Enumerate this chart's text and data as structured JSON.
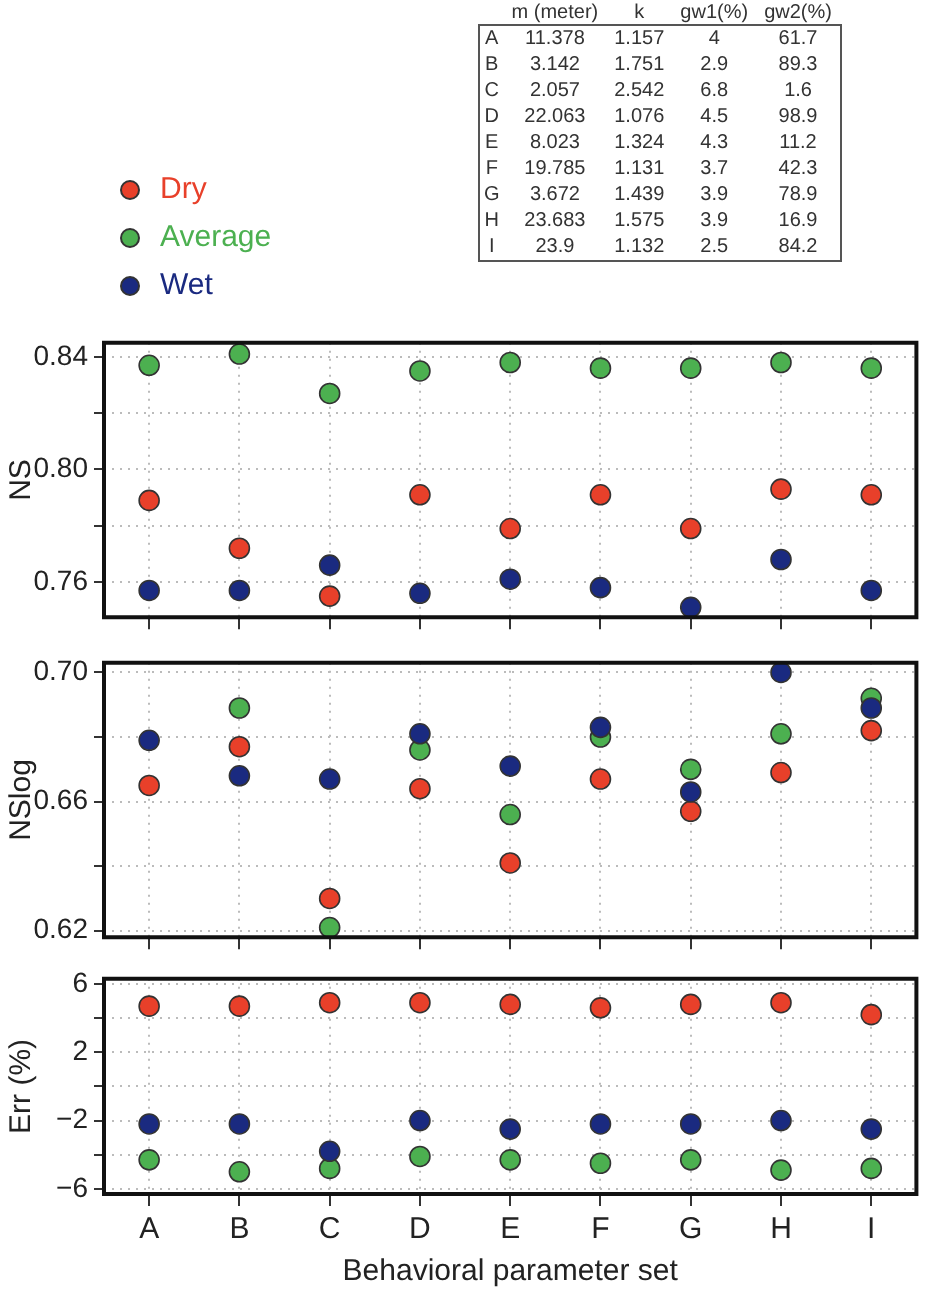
{
  "chart_data": [
    {
      "type": "other",
      "categories": [
        "m (meter)",
        "k",
        "gw1(%)",
        "gw2(%)"
      ],
      "y_categories": [
        "A",
        "B",
        "C",
        "D",
        "E",
        "F",
        "G",
        "H",
        "I"
      ],
      "cell_labels": [
        [
          "11.378",
          "1.157",
          "4",
          "61.7"
        ],
        [
          "3.142",
          "1.751",
          "2.9",
          "89.3"
        ],
        [
          "2.057",
          "2.542",
          "6.8",
          "1.6"
        ],
        [
          "22.063",
          "1.076",
          "4.5",
          "98.9"
        ],
        [
          "8.023",
          "1.324",
          "4.3",
          "11.2"
        ],
        [
          "19.785",
          "1.131",
          "3.7",
          "42.3"
        ],
        [
          "3.672",
          "1.439",
          "3.9",
          "78.9"
        ],
        [
          "23.683",
          "1.575",
          "3.9",
          "16.9"
        ],
        [
          "23.9",
          "1.132",
          "2.5",
          "84.2"
        ]
      ]
    },
    {
      "type": "scatter",
      "ylabel": "NS",
      "categories": [
        null,
        null,
        null,
        null,
        null,
        null,
        null,
        null,
        null
      ],
      "series": [
        {
          "name": "Dry",
          "color": "#e8402a",
          "values": [
            0.789,
            0.772,
            0.755,
            0.791,
            0.779,
            0.791,
            0.779,
            0.793,
            0.791
          ]
        },
        {
          "name": "Average",
          "color": "#4cb050",
          "values": [
            0.837,
            0.841,
            0.827,
            0.835,
            0.838,
            0.836,
            0.836,
            0.838,
            0.836
          ]
        },
        {
          "name": "Wet",
          "color": "#1a2a80",
          "values": [
            0.757,
            0.757,
            0.766,
            0.756,
            0.761,
            0.758,
            0.751,
            0.768,
            0.757
          ]
        }
      ],
      "ylim": [
        0.7475,
        0.845
      ],
      "yticks": [
        0.76,
        {
          "value": 0.78,
          "label": null
        },
        {
          "value": 0.8,
          "label": "0.80"
        },
        {
          "value": 0.82,
          "label": null
        },
        0.84
      ],
      "grid": true,
      "legend": "top left",
      "marker": "circle",
      "tick_labels": "y"
    },
    {
      "type": "scatter",
      "ylabel": "NSlog",
      "categories": [
        null,
        null,
        null,
        null,
        null,
        null,
        null,
        null,
        null
      ],
      "series": [
        {
          "color": "#e8402a",
          "values": [
            0.665,
            0.677,
            0.63,
            0.664,
            0.641,
            0.667,
            0.657,
            0.669,
            0.682
          ]
        },
        {
          "color": "#4cb050",
          "values": [
            null,
            0.689,
            0.621,
            0.676,
            0.656,
            0.68,
            0.67,
            0.681,
            0.692
          ]
        },
        {
          "color": "#1a2a80",
          "values": [
            0.679,
            0.668,
            0.667,
            0.681,
            0.671,
            0.683,
            0.663,
            0.7,
            0.689
          ]
        }
      ],
      "ylim": [
        0.618,
        0.703
      ],
      "yticks": [
        0.62,
        {
          "value": 0.64,
          "label": null
        },
        0.66,
        {
          "value": 0.68,
          "label": null
        },
        {
          "value": 0.7,
          "label": "0.70"
        }
      ],
      "grid": true,
      "marker": "circle",
      "tick_labels": "y"
    },
    {
      "type": "scatter",
      "ylabel": "Err (%)",
      "xlabel": "Behavioral parameter set",
      "categories": [
        "A",
        "B",
        "C",
        "D",
        "E",
        "F",
        "G",
        "H",
        "I"
      ],
      "series": [
        {
          "color": "#e8402a",
          "values": [
            4.7,
            4.7,
            4.9,
            4.9,
            4.8,
            4.6,
            4.8,
            4.9,
            4.2
          ]
        },
        {
          "color": "#4cb050",
          "values": [
            -4.3,
            -5.0,
            -4.8,
            -4.1,
            -4.3,
            -4.5,
            -4.3,
            -4.9,
            -4.8
          ]
        },
        {
          "color": "#1a2a80",
          "values": [
            -2.2,
            -2.2,
            -3.8,
            -2.0,
            -2.5,
            -2.2,
            -2.2,
            -2.0,
            -2.5
          ]
        }
      ],
      "ylim": [
        -6.3,
        6.3
      ],
      "yticks": [
        {
          "value": -6,
          "label": "−6"
        },
        {
          "value": -4,
          "label": null
        },
        {
          "value": -2,
          "label": "−2"
        },
        {
          "value": 0,
          "label": null
        },
        2,
        {
          "value": 4,
          "label": null
        },
        6
      ],
      "grid": true,
      "marker": "circle"
    }
  ]
}
